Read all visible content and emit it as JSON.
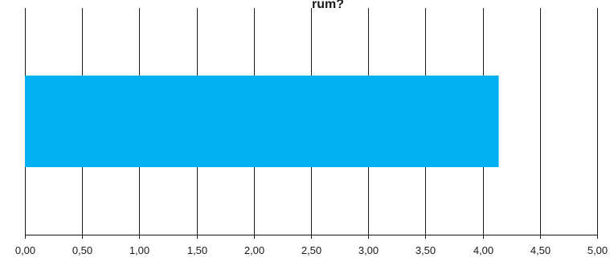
{
  "chart_data": {
    "type": "bar",
    "orientation": "horizontal",
    "title": "rum?",
    "categories": [
      ""
    ],
    "values": [
      4.14
    ],
    "xlim": [
      0,
      5
    ],
    "ticks": [
      0,
      0.5,
      1,
      1.5,
      2,
      2.5,
      3,
      3.5,
      4,
      4.5,
      5
    ],
    "tick_labels": [
      "0,00",
      "0,50",
      "1,00",
      "1,50",
      "2,00",
      "2,50",
      "3,00",
      "3,50",
      "4,00",
      "4,50",
      "5,00"
    ],
    "grid": true,
    "legend": "none",
    "bar_color": "#00b0f0",
    "gridline_color": "#1a1a1a",
    "text_color": "#1a1a1a"
  }
}
